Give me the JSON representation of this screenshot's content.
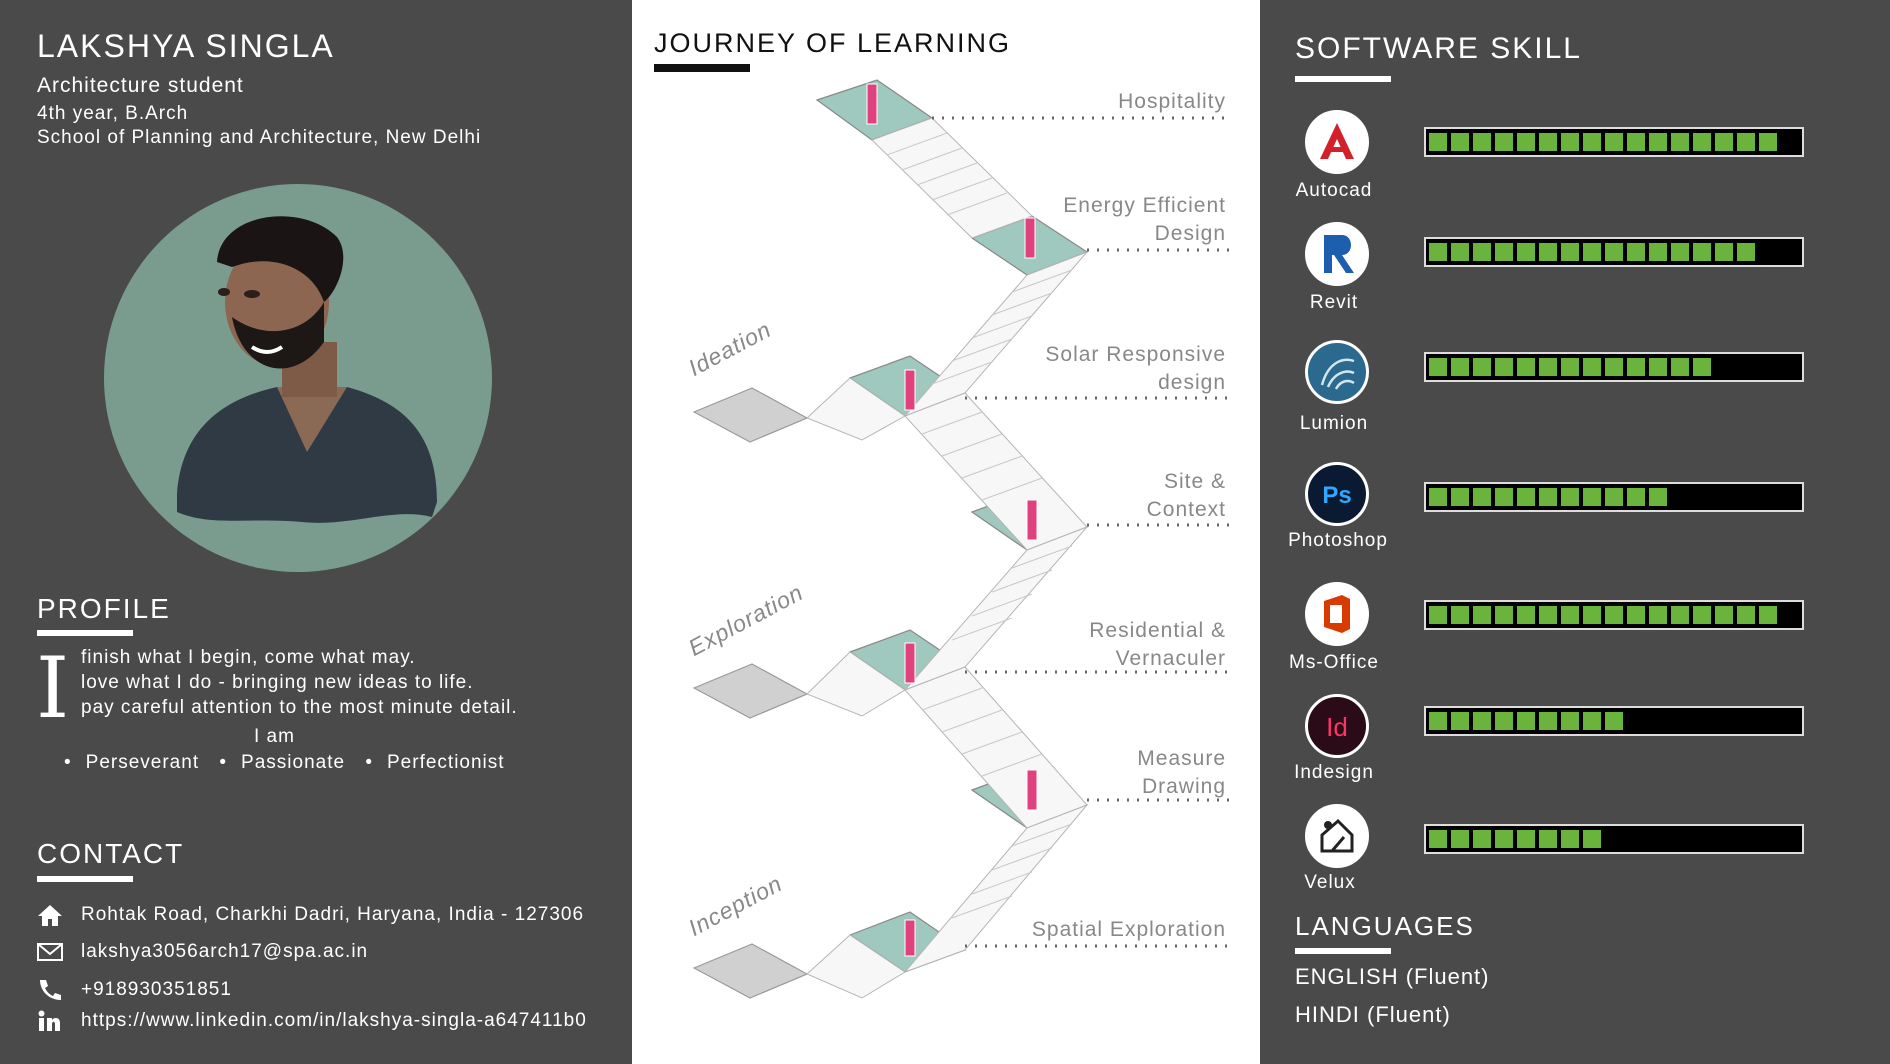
{
  "header": {
    "name": "LAKSHYA SINGLA",
    "role": "Architecture student",
    "year": "4th year, B.Arch",
    "school": "School of Planning and Architecture, New Delhi"
  },
  "profile": {
    "heading": "PROFILE",
    "drop_cap": "I",
    "lines": [
      "finish what I begin, come what may.",
      "love what I do - bringing new ideas to life.",
      "pay careful attention to the most minute detail."
    ],
    "i_am": "I am",
    "traits": [
      "Perseverant",
      "Passionate",
      "Perfectionist"
    ]
  },
  "contact": {
    "heading": "CONTACT",
    "address": "Rohtak Road, Charkhi Dadri, Haryana, India - 127306",
    "email": "lakshya3056arch17@spa.ac.in",
    "phone": "+918930351851",
    "linkedin": "https://www.linkedin.com/in/lakshya-singla-a647411b0"
  },
  "journey": {
    "title": "JOURNEY OF LEARNING",
    "stages": [
      {
        "l1": "Hospitality",
        "l2": ""
      },
      {
        "l1": "Energy Efficient",
        "l2": "Design"
      },
      {
        "l1": "Solar Responsive",
        "l2": "design"
      },
      {
        "l1": "Site &",
        "l2": "Context"
      },
      {
        "l1": "Residential &",
        "l2": "Vernaculer"
      },
      {
        "l1": "Measure",
        "l2": "Drawing"
      },
      {
        "l1": "Spatial Exploration",
        "l2": ""
      }
    ],
    "phases": [
      "Ideation",
      "Exploration",
      "Inception"
    ]
  },
  "software": {
    "heading": "SOFTWARE SKILL",
    "items": [
      {
        "name": "Autocad",
        "level": 0.95,
        "icon": "autocad-icon"
      },
      {
        "name": "Revit",
        "level": 0.88,
        "icon": "revit-icon"
      },
      {
        "name": "Lumion",
        "level": 0.75,
        "icon": "lumion-icon"
      },
      {
        "name": "Photoshop",
        "level": 0.63,
        "icon": "photoshop-icon"
      },
      {
        "name": "Ms-Office",
        "level": 0.95,
        "icon": "ms-office-icon"
      },
      {
        "name": "Indesign",
        "level": 0.51,
        "icon": "indesign-icon"
      },
      {
        "name": "Velux",
        "level": 0.45,
        "icon": "velux-icon"
      }
    ]
  },
  "languages": {
    "heading": "LANGUAGES",
    "items": [
      "ENGLISH (Fluent)",
      "HINDI (Fluent)"
    ]
  },
  "colors": {
    "panel": "#4b4a4a",
    "bar_fill": "#6ab43e",
    "platform": "#9fc9be",
    "avatar_bg": "#7a9c8f"
  }
}
